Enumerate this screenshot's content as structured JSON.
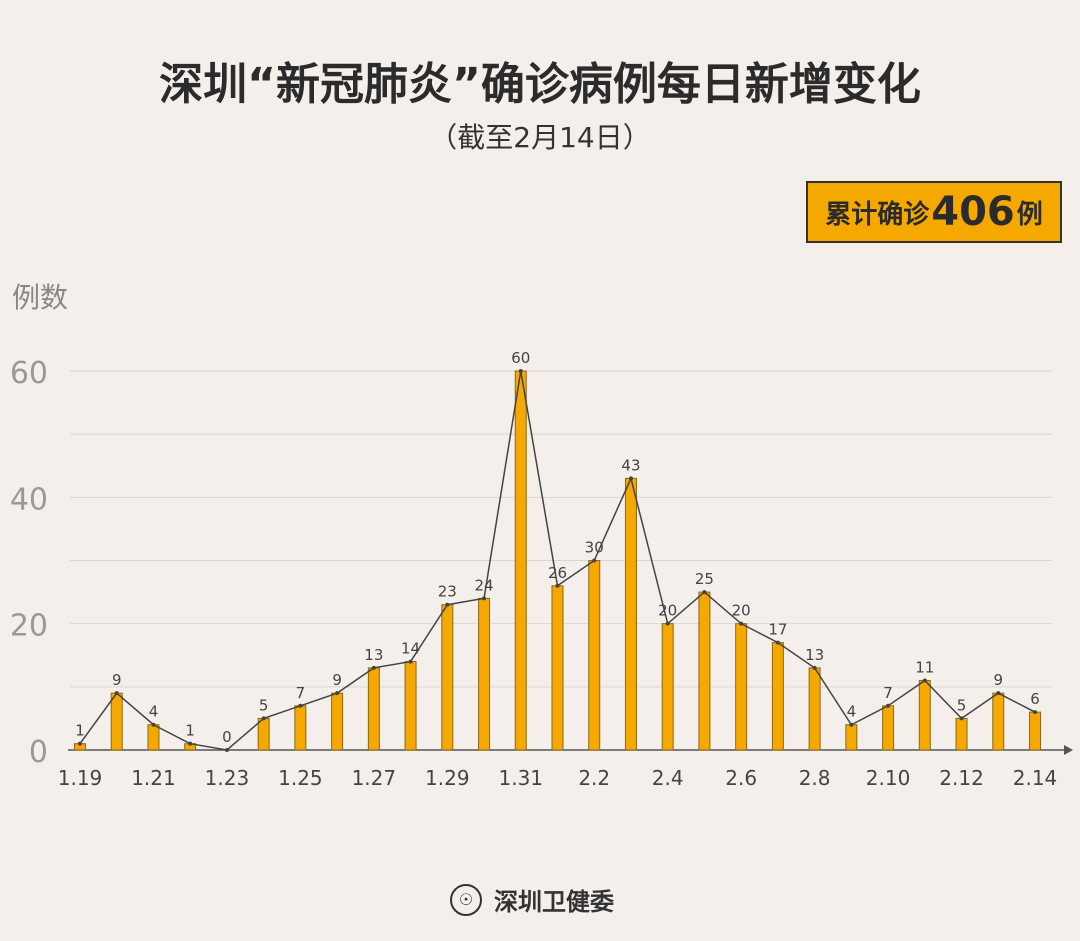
{
  "title": "深圳“新冠肺炎”确诊病例每日新增变化",
  "subtitle": "（截至2月14日）",
  "total": {
    "prefix": "累计确诊",
    "value": "406",
    "suffix": "例"
  },
  "footer": {
    "org": "深圳卫健委"
  },
  "colors": {
    "bar": "#f5a800",
    "bar_border": "#8a6a1a",
    "line": "#444444",
    "background": "#f4efeb"
  },
  "chart_data": {
    "type": "bar",
    "ylabel": "例数",
    "ylim": [
      0,
      60
    ],
    "yticks": [
      0,
      20,
      40,
      60
    ],
    "grid": true,
    "categories": [
      "1.19",
      "1.20",
      "1.21",
      "1.22",
      "1.23",
      "1.24",
      "1.25",
      "1.26",
      "1.27",
      "1.28",
      "1.29",
      "1.30",
      "1.31",
      "2.1",
      "2.2",
      "2.3",
      "2.4",
      "2.5",
      "2.6",
      "2.7",
      "2.8",
      "2.9",
      "2.10",
      "2.11",
      "2.12",
      "2.13",
      "2.14"
    ],
    "xtick_labels": [
      "1.19",
      "1.21",
      "1.23",
      "1.25",
      "1.27",
      "1.29",
      "1.31",
      "2.2",
      "2.4",
      "2.6",
      "2.8",
      "2.10",
      "2.12",
      "2.14"
    ],
    "values": [
      1,
      9,
      4,
      1,
      0,
      5,
      7,
      9,
      13,
      14,
      23,
      24,
      60,
      26,
      30,
      43,
      20,
      25,
      20,
      17,
      13,
      4,
      7,
      11,
      5,
      9,
      6
    ],
    "overlay": "line"
  }
}
